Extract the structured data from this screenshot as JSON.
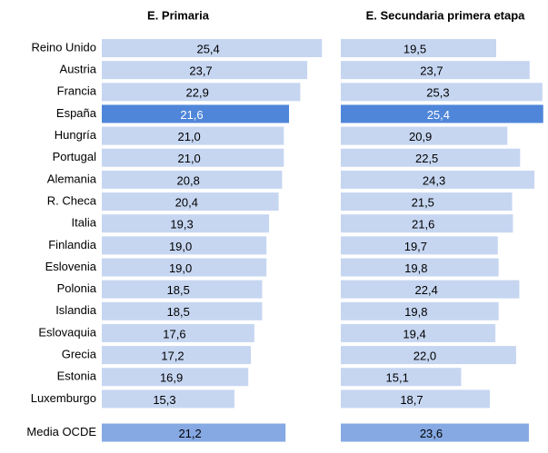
{
  "chart_data": {
    "type": "bar",
    "orientation": "horizontal",
    "categories": [
      "Reino Unido",
      "Austria",
      "Francia",
      "España",
      "Hungría",
      "Portugal",
      "Alemania",
      "R. Checa",
      "Italia",
      "Finlandia",
      "Eslovenia",
      "Polonia",
      "Islandia",
      "Eslovaquia",
      "Grecia",
      "Estonia",
      "Luxemburgo",
      "Media OCDE"
    ],
    "series": [
      {
        "name": "E. Primaria",
        "values": [
          25.4,
          23.7,
          22.9,
          21.6,
          21.0,
          21.0,
          20.8,
          20.4,
          19.3,
          19.0,
          19.0,
          18.5,
          18.5,
          17.6,
          17.2,
          16.9,
          15.3,
          21.2
        ],
        "value_labels": [
          "25,4",
          "23,7",
          "22,9",
          "21,6",
          "21,0",
          "21,0",
          "20,8",
          "20,4",
          "19,3",
          "19,0",
          "19,0",
          "18,5",
          "18,5",
          "17,6",
          "17,2",
          "16,9",
          "15,3",
          "21,2"
        ],
        "colors": [
          "#c6d6f1",
          "#c6d6f1",
          "#c6d6f1",
          "#4f86d9",
          "#c6d6f1",
          "#c6d6f1",
          "#c6d6f1",
          "#c6d6f1",
          "#c6d6f1",
          "#c6d6f1",
          "#c6d6f1",
          "#c6d6f1",
          "#c6d6f1",
          "#c6d6f1",
          "#c6d6f1",
          "#c6d6f1",
          "#c6d6f1",
          "#86a9e3"
        ],
        "xlim": [
          0,
          26
        ]
      },
      {
        "name": "E. Secundaria primera etapa",
        "values": [
          19.5,
          23.7,
          25.3,
          25.4,
          20.9,
          22.5,
          24.3,
          21.5,
          21.6,
          19.7,
          19.8,
          22.4,
          19.8,
          19.4,
          22.0,
          15.1,
          18.7,
          23.6
        ],
        "value_labels": [
          "19,5",
          "23,7",
          "25,3",
          "25,4",
          "20,9",
          "22,5",
          "24,3",
          "21,5",
          "21,6",
          "19,7",
          "19,8",
          "22,4",
          "19,8",
          "19,4",
          "22,0",
          "15,1",
          "18,7",
          "23,6"
        ],
        "colors": [
          "#c6d6f1",
          "#c6d6f1",
          "#c6d6f1",
          "#4f86d9",
          "#c6d6f1",
          "#c6d6f1",
          "#c6d6f1",
          "#c6d6f1",
          "#c6d6f1",
          "#c6d6f1",
          "#c6d6f1",
          "#c6d6f1",
          "#c6d6f1",
          "#c6d6f1",
          "#c6d6f1",
          "#c6d6f1",
          "#c6d6f1",
          "#86a9e3"
        ],
        "xlim": [
          0,
          26
        ]
      }
    ]
  }
}
